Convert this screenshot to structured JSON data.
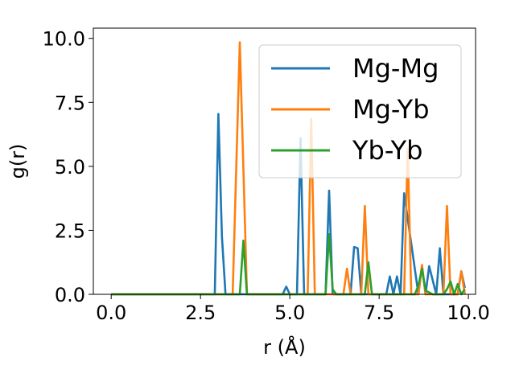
{
  "chart_data": {
    "type": "line",
    "title": "",
    "xlabel": "r (Å)",
    "ylabel": "g(r)",
    "xlim": [
      -0.5,
      10.2
    ],
    "ylim": [
      0,
      10.4
    ],
    "xticks": [
      0.0,
      2.5,
      5.0,
      7.5,
      10.0
    ],
    "xtick_labels": [
      "0.0",
      "2.5",
      "5.0",
      "7.5",
      "10.0"
    ],
    "yticks": [
      0.0,
      2.5,
      5.0,
      7.5,
      10.0
    ],
    "ytick_labels": [
      "0.0",
      "2.5",
      "5.0",
      "7.5",
      "10.0"
    ],
    "legend_position": "top-right",
    "grid": false,
    "series": [
      {
        "name": "Mg-Mg",
        "color": "#1f77b4",
        "x": [
          0.0,
          2.9,
          3.0,
          3.1,
          3.2,
          4.8,
          4.9,
          5.0,
          5.2,
          5.3,
          5.4,
          6.0,
          6.1,
          6.2,
          6.7,
          6.8,
          6.9,
          7.0,
          7.7,
          7.8,
          7.9,
          8.0,
          8.1,
          8.2,
          8.6,
          8.7,
          8.8,
          8.9,
          9.1,
          9.2,
          9.3,
          9.7,
          9.8,
          9.9
        ],
        "y": [
          0.0,
          0.0,
          7.05,
          2.25,
          0.0,
          0.0,
          0.3,
          0.0,
          0.0,
          6.1,
          0.0,
          0.0,
          4.05,
          0.0,
          0.0,
          1.85,
          1.8,
          0.0,
          0.0,
          0.7,
          0.0,
          0.7,
          0.0,
          3.95,
          0.0,
          1.1,
          0.0,
          1.1,
          0.0,
          1.8,
          0.0,
          0.0,
          0.9,
          0.25
        ]
      },
      {
        "name": "Mg-Yb",
        "color": "#ff7f0e",
        "x": [
          0.0,
          3.4,
          3.6,
          3.8,
          5.5,
          5.6,
          5.7,
          6.5,
          6.6,
          6.7,
          7.0,
          7.1,
          7.2,
          8.2,
          8.3,
          8.4,
          8.6,
          8.7,
          8.8,
          9.3,
          9.4,
          9.5,
          9.7,
          9.8,
          9.9
        ],
        "y": [
          0.0,
          0.0,
          9.85,
          0.0,
          0.0,
          6.85,
          0.0,
          0.0,
          1.0,
          0.0,
          0.0,
          3.45,
          0.0,
          0.0,
          5.7,
          0.0,
          0.0,
          1.15,
          0.0,
          0.0,
          3.45,
          0.0,
          0.0,
          0.9,
          0.0
        ]
      },
      {
        "name": "Yb-Yb",
        "color": "#2ca02c",
        "x": [
          0.0,
          3.6,
          3.7,
          3.8,
          6.0,
          6.1,
          6.2,
          6.3,
          7.1,
          7.2,
          7.3,
          8.5,
          8.6,
          8.7,
          8.8,
          9.0,
          9.1,
          9.3,
          9.4,
          9.5,
          9.6,
          9.7,
          9.8,
          9.9
        ],
        "y": [
          0.0,
          0.0,
          2.1,
          0.0,
          0.0,
          2.35,
          0.2,
          0.0,
          0.0,
          1.25,
          0.0,
          0.0,
          0.35,
          1.0,
          0.15,
          0.0,
          0.0,
          0.0,
          0.2,
          0.5,
          0.0,
          0.4,
          0.0,
          0.2
        ]
      }
    ]
  }
}
